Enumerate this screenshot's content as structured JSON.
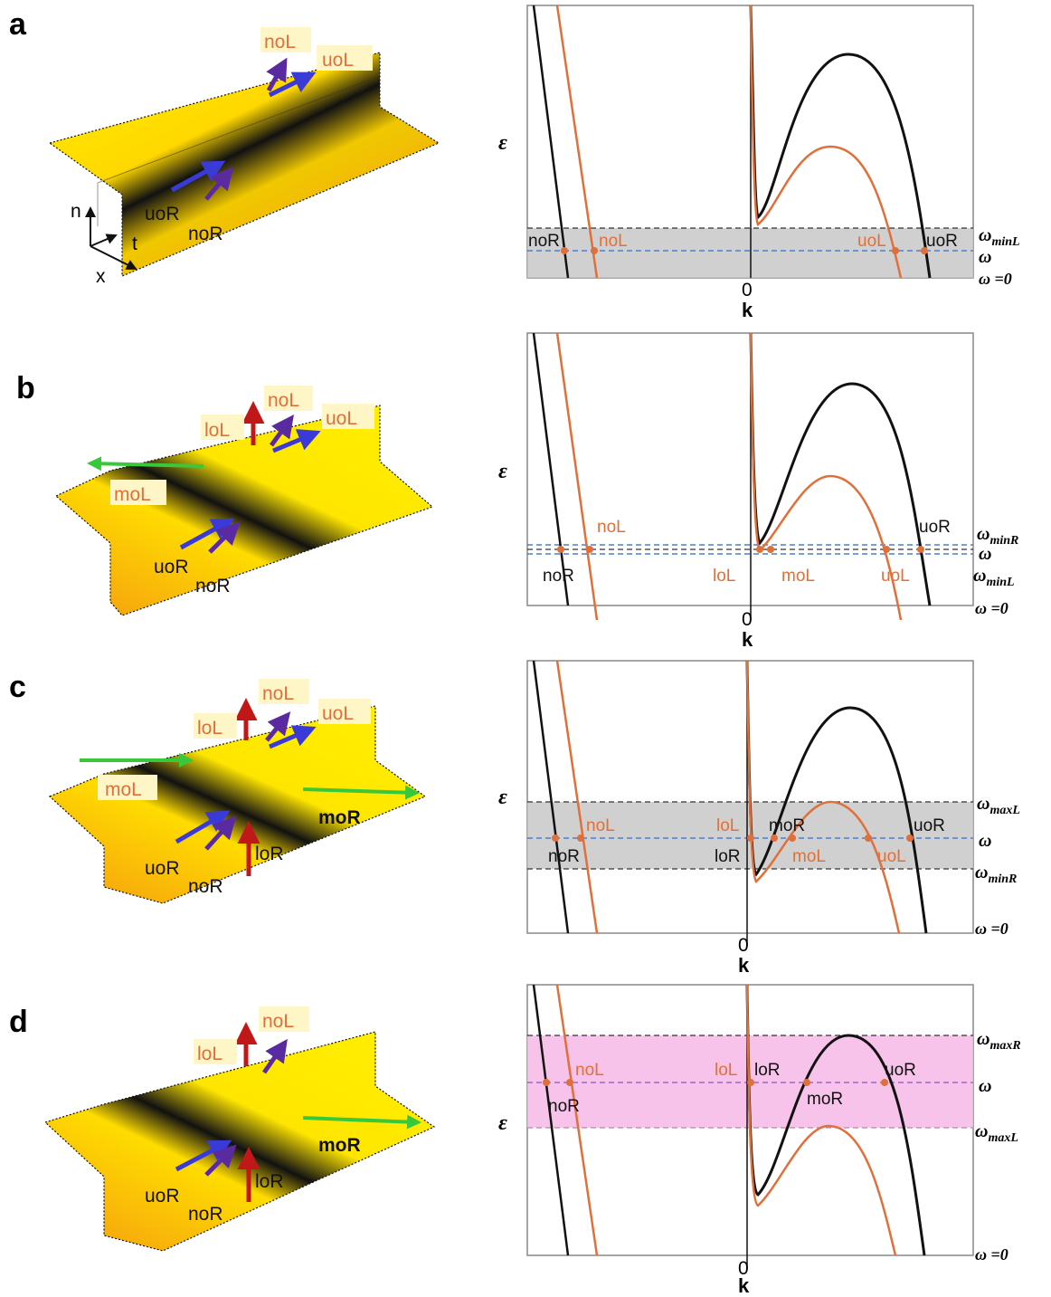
{
  "colors": {
    "black_branch": "#111111",
    "orange_branch": "#e0703a",
    "orange_text": "#e0703a",
    "grey_band": "#c8c8c8",
    "pink_band": "#f6b8e6",
    "blue_line": "#4a7fd0",
    "blue_arrow": "#3a3ad8",
    "purple_arrow": "#5a2aa0",
    "red_arrow": "#c01818",
    "green_arrow": "#39c83a",
    "surface_light": "#ffee00",
    "surface_orange": "#f59a10",
    "trough_dark": "#111111"
  },
  "panels": [
    {
      "letter": "a",
      "left_labels": [
        "noL",
        "uoL",
        "uoR",
        "noR"
      ],
      "axis": {
        "epsilon": "ε",
        "n": "n",
        "t": "t",
        "x": "x"
      },
      "plot": {
        "zero": "0",
        "k": "k",
        "band": "grey",
        "right_labels": {
          "top": "ω_minL",
          "mid": "ω",
          "bottom": "ω =0"
        },
        "curve_labels": [
          "noR",
          "noL",
          "uoL",
          "uoR"
        ]
      }
    },
    {
      "letter": "b",
      "left_labels": [
        "loL",
        "noL",
        "uoL",
        "moL",
        "uoR",
        "noR"
      ],
      "epsilon": "ε",
      "plot": {
        "zero": "0",
        "k": "k",
        "band": "none",
        "right_labels": {
          "top": "ω_minR",
          "mid": "ω",
          "low": "ω_minL",
          "bottom": "ω =0"
        },
        "curve_labels": [
          "noL",
          "uoR",
          "noR",
          "loL",
          "moL",
          "uoL"
        ]
      }
    },
    {
      "letter": "c",
      "left_labels": [
        "noL",
        "loL",
        "uoL",
        "moL",
        "moR",
        "uoR",
        "loR",
        "noR"
      ],
      "epsilon": "ε",
      "plot": {
        "zero": "0",
        "k": "k",
        "band": "grey",
        "right_labels": {
          "top": "ω_maxL",
          "mid": "ω",
          "low": "ω_minR",
          "bottom": "ω =0"
        },
        "curve_labels": [
          "noL",
          "loL",
          "moR",
          "uoR",
          "noR",
          "loR",
          "moL",
          "uoL"
        ]
      }
    },
    {
      "letter": "d",
      "left_labels": [
        "loL",
        "noL",
        "moR",
        "uoR",
        "loR",
        "noR"
      ],
      "epsilon": "ε",
      "plot": {
        "zero": "0",
        "k": "k",
        "band": "pink",
        "right_labels": {
          "top": "ω_maxR",
          "mid": "ω",
          "low": "ω_maxL",
          "bottom": "ω =0"
        },
        "curve_labels": [
          "noL",
          "loL",
          "loR",
          "uoR",
          "noR",
          "moR"
        ]
      }
    }
  ]
}
